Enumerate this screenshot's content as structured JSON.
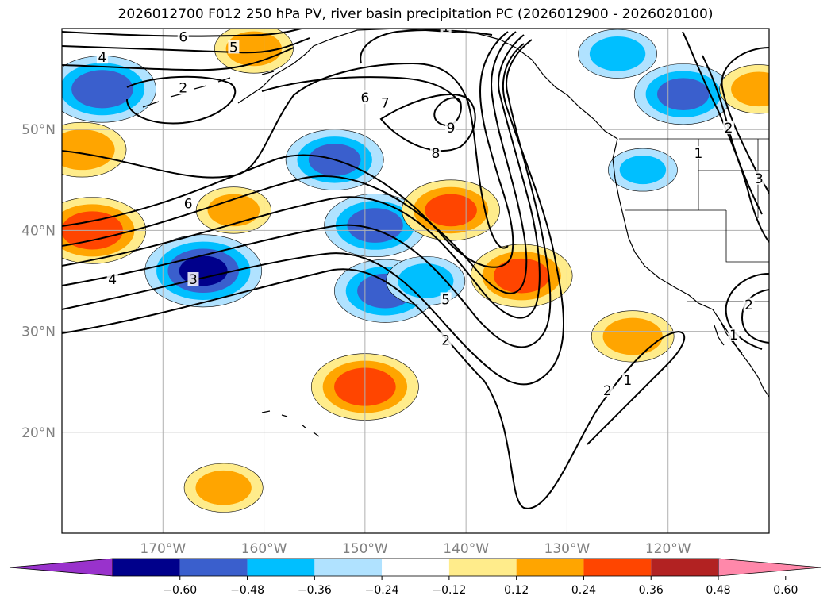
{
  "title": "2026012700 F012 250 hPa PV, river basin precipitation PC (2026012900 - 2026020100)",
  "axes": {
    "lat_labels": [
      "50°N",
      "40°N",
      "30°N",
      "20°N"
    ],
    "lat_values": [
      50,
      40,
      30,
      20
    ],
    "lon_labels": [
      "170°W",
      "160°W",
      "150°W",
      "140°W",
      "130°W",
      "120°W"
    ],
    "lon_values": [
      -170,
      -160,
      -150,
      -140,
      -130,
      -120
    ],
    "lon_range": [
      -180,
      -110
    ],
    "lat_range": [
      10,
      60
    ]
  },
  "colorbar": {
    "tick_labels": [
      "−0.60",
      "−0.48",
      "−0.36",
      "−0.24",
      "−0.12",
      "0.12",
      "0.24",
      "0.36",
      "0.48",
      "0.60"
    ],
    "tick_values": [
      -0.6,
      -0.48,
      -0.36,
      -0.24,
      -0.12,
      0.12,
      0.24,
      0.36,
      0.48,
      0.6
    ],
    "colors": [
      "#9932cc",
      "#00008b",
      "#3a5fcd",
      "#00bfff",
      "#b0e2ff",
      "#ffffff",
      "#ffec8b",
      "#ffa500",
      "#ff4500",
      "#b22222",
      "#ff88aa"
    ]
  },
  "contour_labels": [
    {
      "text": "6",
      "lon": -168,
      "lat": 59
    },
    {
      "text": "5",
      "lon": -163,
      "lat": 58
    },
    {
      "text": "4",
      "lon": -176,
      "lat": 57
    },
    {
      "text": "2",
      "lon": -168,
      "lat": 54
    },
    {
      "text": "1",
      "lon": -142,
      "lat": 60
    },
    {
      "text": "6",
      "lon": -150,
      "lat": 53
    },
    {
      "text": "7",
      "lon": -148,
      "lat": 52.5
    },
    {
      "text": "9",
      "lon": -141.5,
      "lat": 50
    },
    {
      "text": "8",
      "lon": -143,
      "lat": 47.5
    },
    {
      "text": "6",
      "lon": -167.5,
      "lat": 42.5
    },
    {
      "text": "4",
      "lon": -175,
      "lat": 35
    },
    {
      "text": "3",
      "lon": -167,
      "lat": 35
    },
    {
      "text": "5",
      "lon": -142,
      "lat": 33
    },
    {
      "text": "2",
      "lon": -142,
      "lat": 29
    },
    {
      "text": "2",
      "lon": -126,
      "lat": 24
    },
    {
      "text": "1",
      "lon": -124,
      "lat": 25
    },
    {
      "text": "2",
      "lon": -114,
      "lat": 50
    },
    {
      "text": "1",
      "lon": -117,
      "lat": 47.5
    },
    {
      "text": "3",
      "lon": -111,
      "lat": 45
    },
    {
      "text": "2",
      "lon": -112,
      "lat": 32.5
    },
    {
      "text": "1",
      "lon": -113.5,
      "lat": 29.5
    }
  ],
  "precip_anomalies": [
    {
      "lon": -176,
      "lat": 54,
      "value": -0.45
    },
    {
      "lon": -178,
      "lat": 48,
      "value": 0.35
    },
    {
      "lon": -177,
      "lat": 40,
      "value": 0.45
    },
    {
      "lon": -166,
      "lat": 36,
      "value": -0.5
    },
    {
      "lon": -161,
      "lat": 58,
      "value": 0.3
    },
    {
      "lon": -163,
      "lat": 42,
      "value": 0.28
    },
    {
      "lon": -153,
      "lat": 47,
      "value": -0.4
    },
    {
      "lon": -149,
      "lat": 40.5,
      "value": -0.42
    },
    {
      "lon": -148,
      "lat": 34,
      "value": -0.42
    },
    {
      "lon": -144,
      "lat": 35,
      "value": -0.3
    },
    {
      "lon": -141.5,
      "lat": 42,
      "value": 0.4
    },
    {
      "lon": -134.5,
      "lat": 35.5,
      "value": 0.42
    },
    {
      "lon": -123.5,
      "lat": 29.5,
      "value": 0.32
    },
    {
      "lon": -150,
      "lat": 24.5,
      "value": 0.45
    },
    {
      "lon": -164,
      "lat": 14.5,
      "value": 0.3
    },
    {
      "lon": -118.5,
      "lat": 53.5,
      "value": -0.4
    },
    {
      "lon": -125,
      "lat": 57.5,
      "value": -0.3
    },
    {
      "lon": -111,
      "lat": 54,
      "value": 0.3
    },
    {
      "lon": -122.5,
      "lat": 46,
      "value": -0.25
    }
  ]
}
